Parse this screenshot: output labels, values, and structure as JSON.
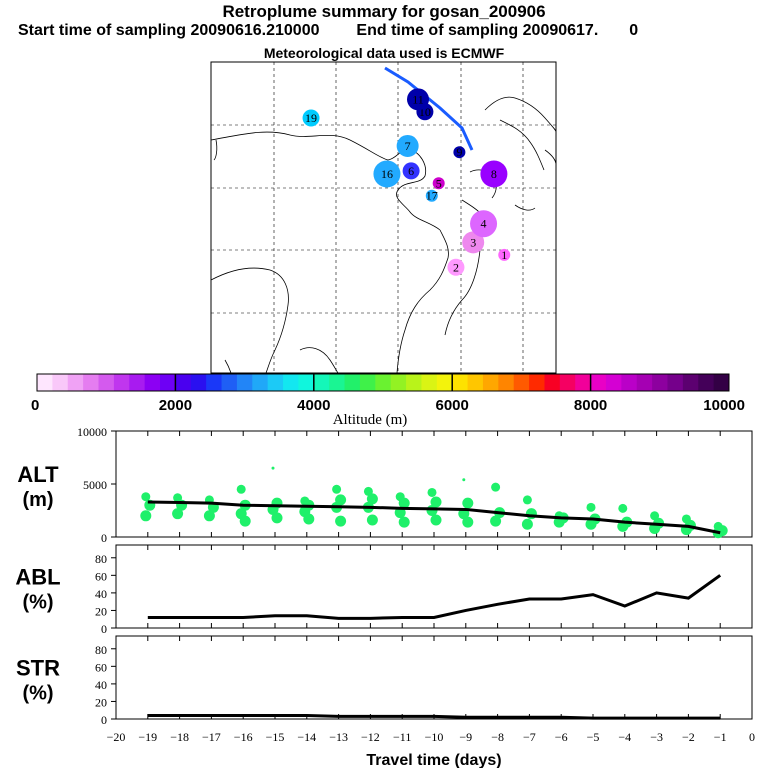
{
  "header": {
    "title": "Retroplume summary for gosan_200906",
    "start_label": "Start time of sampling 20090616.210000",
    "end_label": "End time of sampling 20090617.",
    "end_tail": "0",
    "met_label": "Meteorological data used is ECMWF"
  },
  "map": {
    "markers": [
      {
        "label": "1",
        "lon": 0.85,
        "lat": 0.62,
        "color": "#ff66ff"
      },
      {
        "label": "2",
        "lon": 0.71,
        "lat": 0.66,
        "color": "#ff99ff"
      },
      {
        "label": "3",
        "lon": 0.76,
        "lat": 0.58,
        "color": "#ee88ee"
      },
      {
        "label": "4",
        "lon": 0.79,
        "lat": 0.52,
        "color": "#dd66ff"
      },
      {
        "label": "5",
        "lon": 0.66,
        "lat": 0.39,
        "color": "#cc00cc"
      },
      {
        "label": "6",
        "lon": 0.58,
        "lat": 0.35,
        "color": "#3333ff"
      },
      {
        "label": "7",
        "lon": 0.57,
        "lat": 0.27,
        "color": "#22aaff"
      },
      {
        "label": "8",
        "lon": 0.82,
        "lat": 0.36,
        "color": "#9900ff"
      },
      {
        "label": "9",
        "lon": 0.72,
        "lat": 0.29,
        "color": "#0000aa"
      },
      {
        "label": "10",
        "lon": 0.62,
        "lat": 0.16,
        "color": "#0000aa"
      },
      {
        "label": "11",
        "lon": 0.6,
        "lat": 0.12,
        "color": "#0000aa"
      },
      {
        "label": "16",
        "lon": 0.51,
        "lat": 0.36,
        "color": "#22aaff"
      },
      {
        "label": "17",
        "lon": 0.64,
        "lat": 0.43,
        "color": "#22aaff"
      },
      {
        "label": "19",
        "lon": 0.29,
        "lat": 0.18,
        "color": "#00ccff"
      }
    ]
  },
  "colorbar": {
    "ticks": [
      "0",
      "2000",
      "4000",
      "6000",
      "8000",
      "10000"
    ],
    "label": "Altitude (m)",
    "colors": [
      "#fee6fe",
      "#f9c8f9",
      "#f0a2f5",
      "#e57df0",
      "#d45aee",
      "#c036ee",
      "#a81bf0",
      "#8c00f3",
      "#6e00f5",
      "#4a00ef",
      "#2a10f0",
      "#1a38f8",
      "#1f5ff5",
      "#2285f7",
      "#20a8f8",
      "#1ccaf6",
      "#13e7f0",
      "#10f6dd",
      "#14f7b9",
      "#1af593",
      "#22f06a",
      "#3ff149",
      "#6af230",
      "#93f223",
      "#b9f31a",
      "#daf414",
      "#f3f30c",
      "#fde200",
      "#ffc600",
      "#ffa700",
      "#ff8500",
      "#ff5a00",
      "#ff2a00",
      "#f80024",
      "#f50062",
      "#f1009a",
      "#e900c6",
      "#d400d3",
      "#ba00c8",
      "#a500b3",
      "#8d009f",
      "#75008b",
      "#5c0070",
      "#440059",
      "#330045"
    ]
  },
  "chart_data": [
    {
      "type": "line",
      "ylabel_line1": "ALT",
      "ylabel_line2": "(m)",
      "ylim": [
        0,
        10000
      ],
      "ytick_labels": [
        "0",
        "5000",
        "10000"
      ],
      "x": [
        -19,
        -18,
        -17,
        -16,
        -15,
        -14,
        -13,
        -12,
        -11,
        -10,
        -9,
        -8,
        -7,
        -6,
        -5,
        -4,
        -3,
        -2,
        -1
      ],
      "values": [
        3300,
        3250,
        3200,
        3000,
        2950,
        2900,
        2850,
        2800,
        2700,
        2650,
        2600,
        2300,
        2000,
        1800,
        1700,
        1400,
        1200,
        1000,
        400
      ],
      "scatter": [
        {
          "x": -19,
          "y": [
            3800,
            3000,
            2000
          ]
        },
        {
          "x": -18,
          "y": [
            3700,
            3000,
            2200
          ]
        },
        {
          "x": -17,
          "y": [
            3500,
            2800,
            2000
          ]
        },
        {
          "x": -16,
          "y": [
            4500,
            3000,
            2200,
            1500
          ]
        },
        {
          "x": -15,
          "y": [
            6500,
            3200,
            2600,
            1800
          ]
        },
        {
          "x": -14,
          "y": [
            3400,
            3000,
            2400,
            1700
          ]
        },
        {
          "x": -13,
          "y": [
            4500,
            3500,
            2800,
            1500
          ]
        },
        {
          "x": -12,
          "y": [
            4300,
            3600,
            2800,
            1600
          ]
        },
        {
          "x": -11,
          "y": [
            3800,
            3200,
            2300,
            1400
          ]
        },
        {
          "x": -10,
          "y": [
            4200,
            3300,
            2500,
            1600
          ]
        },
        {
          "x": -9,
          "y": [
            5400,
            3200,
            2200,
            1400
          ]
        },
        {
          "x": -8,
          "y": [
            4700,
            2300,
            1500
          ]
        },
        {
          "x": -7,
          "y": [
            3500,
            2200,
            1200
          ]
        },
        {
          "x": -6,
          "y": [
            2000,
            1800,
            1400
          ]
        },
        {
          "x": -5,
          "y": [
            2800,
            1700,
            1200
          ]
        },
        {
          "x": -4,
          "y": [
            2700,
            1400,
            1000
          ]
        },
        {
          "x": -3,
          "y": [
            2000,
            1300,
            800
          ]
        },
        {
          "x": -2,
          "y": [
            1700,
            1100,
            700
          ]
        },
        {
          "x": -1,
          "y": [
            1000,
            600,
            400
          ]
        }
      ]
    },
    {
      "type": "line",
      "ylabel_line1": "ABL",
      "ylabel_line2": "(%)",
      "ylim": [
        0,
        90
      ],
      "ytick_labels": [
        "0",
        "20",
        "40",
        "60",
        "80"
      ],
      "x": [
        -19,
        -18,
        -17,
        -16,
        -15,
        -14,
        -13,
        -12,
        -11,
        -10,
        -9,
        -8,
        -7,
        -6,
        -5,
        -4,
        -3,
        -2,
        -1
      ],
      "values": [
        12,
        12,
        12,
        12,
        14,
        14,
        11,
        11,
        12,
        12,
        20,
        27,
        33,
        33,
        38,
        25,
        40,
        34,
        60
      ]
    },
    {
      "type": "line",
      "ylabel_line1": "STR",
      "ylabel_line2": "(%)",
      "ylim": [
        0,
        90
      ],
      "ytick_labels": [
        "0",
        "20",
        "40",
        "60",
        "80"
      ],
      "x": [
        -19,
        -18,
        -17,
        -16,
        -15,
        -14,
        -13,
        -12,
        -11,
        -10,
        -9,
        -8,
        -7,
        -6,
        -5,
        -4,
        -3,
        -2,
        -1
      ],
      "values": [
        4,
        4,
        4,
        4,
        4,
        4,
        3,
        3,
        3,
        3,
        2,
        2,
        2,
        2,
        1,
        1,
        1,
        1,
        1
      ],
      "xlabel": "Travel time (days)",
      "xtick_labels": [
        "-20",
        "-19",
        "-18",
        "-17",
        "-16",
        "-15",
        "-14",
        "-13",
        "-12",
        "-11",
        "-10",
        "-9",
        "-8",
        "-7",
        "-6",
        "-5",
        "-4",
        "-3",
        "-2",
        "-1",
        "0"
      ]
    }
  ]
}
